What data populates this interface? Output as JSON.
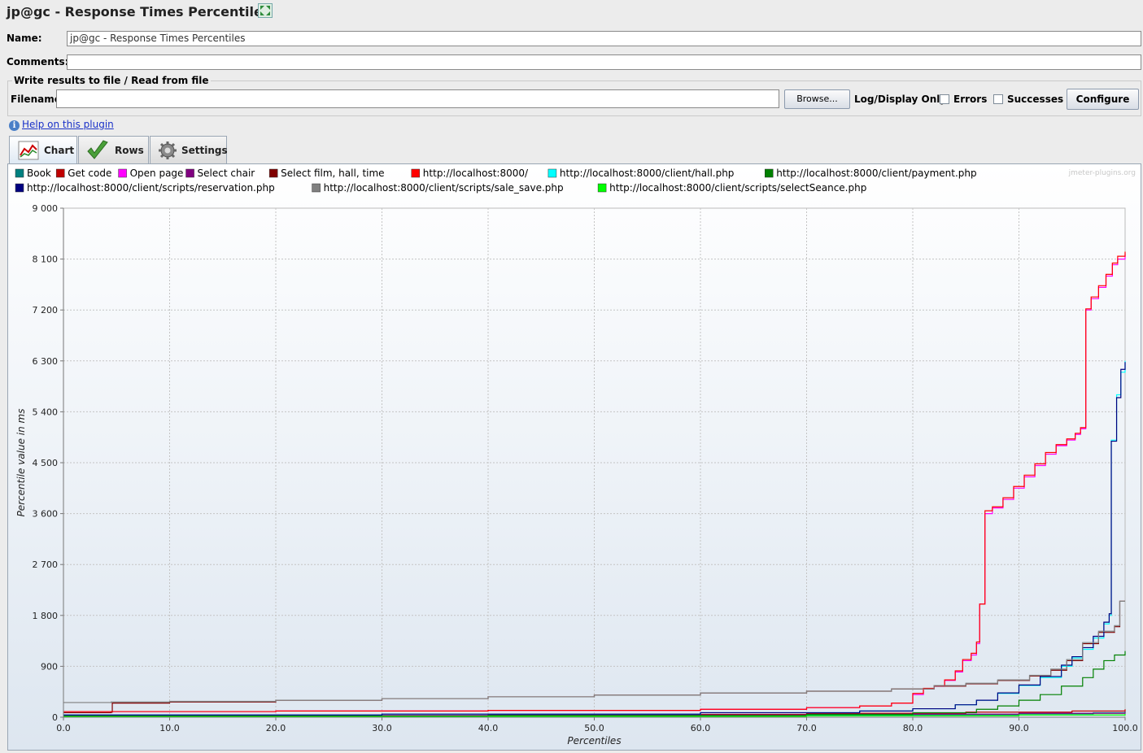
{
  "header": {
    "title": "jp@gc - Response Times Percentiles",
    "expand_icon": "expand-icon"
  },
  "form": {
    "name_label": "Name:",
    "name_value": "jp@gc - Response Times Percentiles",
    "comments_label": "Comments:",
    "comments_value": "",
    "file_group_title": "Write results to file / Read from file",
    "filename_label": "Filename",
    "filename_value": "",
    "browse_label": "Browse...",
    "log_display_label": "Log/Display Only:",
    "errors_label": "Errors",
    "errors_checked": false,
    "successes_label": "Successes",
    "successes_checked": false,
    "configure_label": "Configure"
  },
  "help": {
    "icon": "info-icon",
    "link": "Help on this plugin"
  },
  "tabs": [
    {
      "label": "Chart",
      "icon": "chart-icon",
      "active": true
    },
    {
      "label": "Rows",
      "icon": "checkmark-icon",
      "active": false
    },
    {
      "label": "Settings",
      "icon": "gear-icon",
      "active": false
    }
  ],
  "watermark": "jmeter-plugins.org",
  "chart_data": {
    "type": "line",
    "title": "",
    "xlabel": "Percentiles",
    "ylabel": "Percentile value in ms",
    "xlim": [
      0,
      100
    ],
    "ylim": [
      0,
      9000
    ],
    "x_ticks": [
      "0.0",
      "10.0",
      "20.0",
      "30.0",
      "40.0",
      "50.0",
      "60.0",
      "70.0",
      "80.0",
      "90.0",
      "100.0"
    ],
    "y_ticks": [
      "0",
      "900",
      "1 800",
      "2 700",
      "3 600",
      "4 500",
      "5 400",
      "6 300",
      "7 200",
      "8 100",
      "9 000"
    ],
    "grid": true,
    "legend_position": "top",
    "series": [
      {
        "name": "Book",
        "color": "#008080",
        "points": [
          [
            0,
            20
          ],
          [
            50,
            35
          ],
          [
            80,
            45
          ],
          [
            90,
            60
          ],
          [
            97,
            80
          ],
          [
            100,
            100
          ]
        ]
      },
      {
        "name": "Get code",
        "color": "#c00000",
        "points": [
          [
            0,
            30
          ],
          [
            40,
            50
          ],
          [
            70,
            70
          ],
          [
            85,
            90
          ],
          [
            95,
            110
          ],
          [
            100,
            140
          ]
        ]
      },
      {
        "name": "Open page",
        "color": "#ff00ff",
        "points": [
          [
            0,
            100
          ],
          [
            20,
            110
          ],
          [
            40,
            120
          ],
          [
            60,
            140
          ],
          [
            70,
            170
          ],
          [
            75,
            200
          ],
          [
            78,
            250
          ],
          [
            80,
            400
          ],
          [
            81,
            500
          ],
          [
            82,
            550
          ],
          [
            83,
            650
          ],
          [
            84,
            800
          ],
          [
            84.7,
            1000
          ],
          [
            85.5,
            1100
          ],
          [
            86,
            1300
          ],
          [
            86.3,
            2000
          ],
          [
            86.8,
            3600
          ],
          [
            87.5,
            3700
          ],
          [
            88.5,
            3850
          ],
          [
            89.5,
            4050
          ],
          [
            90.5,
            4250
          ],
          [
            91.5,
            4450
          ],
          [
            92.5,
            4650
          ],
          [
            93.5,
            4800
          ],
          [
            94.5,
            4900
          ],
          [
            95.3,
            5000
          ],
          [
            95.8,
            5100
          ],
          [
            96.3,
            7200
          ],
          [
            96.8,
            7400
          ],
          [
            97.5,
            7600
          ],
          [
            98.2,
            7800
          ],
          [
            98.8,
            8000
          ],
          [
            99.3,
            8100
          ],
          [
            100,
            8200
          ]
        ]
      },
      {
        "name": "Select chair",
        "color": "#800080",
        "points": [
          [
            0,
            30
          ],
          [
            40,
            40
          ],
          [
            70,
            55
          ],
          [
            90,
            70
          ],
          [
            100,
            90
          ]
        ]
      },
      {
        "name": "Select film, hall, time",
        "color": "#800000",
        "points": [
          [
            0,
            80
          ],
          [
            4.5,
            90
          ],
          [
            4.6,
            250
          ],
          [
            10,
            270
          ],
          [
            20,
            300
          ],
          [
            30,
            330
          ],
          [
            40,
            360
          ],
          [
            50,
            390
          ],
          [
            60,
            430
          ],
          [
            70,
            460
          ],
          [
            78,
            500
          ],
          [
            82,
            550
          ],
          [
            85,
            590
          ],
          [
            88,
            650
          ],
          [
            91,
            730
          ],
          [
            93,
            830
          ],
          [
            94.5,
            1000
          ],
          [
            96,
            1300
          ],
          [
            97.5,
            1500
          ],
          [
            99,
            1600
          ],
          [
            99.5,
            2050
          ],
          [
            100,
            2050
          ]
        ]
      },
      {
        "name": "http://localhost:8000/",
        "color": "#ff0000",
        "points": [
          [
            0,
            100
          ],
          [
            20,
            110
          ],
          [
            40,
            120
          ],
          [
            60,
            140
          ],
          [
            70,
            170
          ],
          [
            75,
            200
          ],
          [
            78,
            250
          ],
          [
            80,
            420
          ],
          [
            81,
            510
          ],
          [
            82,
            560
          ],
          [
            83,
            660
          ],
          [
            84,
            820
          ],
          [
            84.7,
            1020
          ],
          [
            85.5,
            1130
          ],
          [
            86,
            1330
          ],
          [
            86.3,
            2000
          ],
          [
            86.8,
            3650
          ],
          [
            87.5,
            3720
          ],
          [
            88.5,
            3880
          ],
          [
            89.5,
            4080
          ],
          [
            90.5,
            4280
          ],
          [
            91.5,
            4480
          ],
          [
            92.5,
            4680
          ],
          [
            93.5,
            4820
          ],
          [
            94.5,
            4920
          ],
          [
            95.3,
            5020
          ],
          [
            95.8,
            5120
          ],
          [
            96.3,
            7220
          ],
          [
            96.8,
            7430
          ],
          [
            97.5,
            7630
          ],
          [
            98.2,
            7830
          ],
          [
            98.8,
            8030
          ],
          [
            99.3,
            8150
          ],
          [
            100,
            8230
          ]
        ]
      },
      {
        "name": "http://localhost:8000/client/hall.php",
        "color": "#00ffff",
        "points": [
          [
            0,
            40
          ],
          [
            30,
            55
          ],
          [
            60,
            80
          ],
          [
            75,
            110
          ],
          [
            80,
            150
          ],
          [
            84,
            220
          ],
          [
            86,
            300
          ],
          [
            88,
            420
          ],
          [
            90,
            560
          ],
          [
            92,
            700
          ],
          [
            94,
            900
          ],
          [
            95,
            1050
          ],
          [
            96,
            1200
          ],
          [
            97,
            1400
          ],
          [
            98,
            1650
          ],
          [
            98.5,
            1800
          ],
          [
            98.7,
            4900
          ],
          [
            99,
            4900
          ],
          [
            99.2,
            5700
          ],
          [
            99.6,
            6100
          ],
          [
            100,
            6300
          ]
        ]
      },
      {
        "name": "http://localhost:8000/client/payment.php",
        "color": "#008000",
        "points": [
          [
            0,
            20
          ],
          [
            40,
            30
          ],
          [
            70,
            50
          ],
          [
            80,
            80
          ],
          [
            86,
            140
          ],
          [
            88,
            200
          ],
          [
            90,
            300
          ],
          [
            92,
            400
          ],
          [
            94,
            550
          ],
          [
            96,
            700
          ],
          [
            97,
            850
          ],
          [
            98,
            1000
          ],
          [
            99,
            1100
          ],
          [
            100,
            1170
          ]
        ]
      },
      {
        "name": "http://localhost:8000/client/scripts/reservation.php",
        "color": "#000080",
        "points": [
          [
            0,
            40
          ],
          [
            30,
            55
          ],
          [
            60,
            80
          ],
          [
            75,
            110
          ],
          [
            80,
            150
          ],
          [
            84,
            220
          ],
          [
            86,
            300
          ],
          [
            88,
            430
          ],
          [
            90,
            570
          ],
          [
            92,
            720
          ],
          [
            94,
            920
          ],
          [
            95,
            1070
          ],
          [
            96,
            1230
          ],
          [
            97,
            1430
          ],
          [
            98,
            1680
          ],
          [
            98.5,
            1830
          ],
          [
            98.7,
            4880
          ],
          [
            99,
            4880
          ],
          [
            99.2,
            5650
          ],
          [
            99.6,
            6150
          ],
          [
            100,
            6280
          ]
        ]
      },
      {
        "name": "http://localhost:8000/client/scripts/sale_save.php",
        "color": "#808080",
        "points": [
          [
            0,
            260
          ],
          [
            4.5,
            270
          ],
          [
            10,
            280
          ],
          [
            20,
            300
          ],
          [
            30,
            330
          ],
          [
            40,
            360
          ],
          [
            50,
            390
          ],
          [
            60,
            430
          ],
          [
            70,
            460
          ],
          [
            78,
            500
          ],
          [
            82,
            560
          ],
          [
            85,
            600
          ],
          [
            88,
            660
          ],
          [
            91,
            740
          ],
          [
            93,
            850
          ],
          [
            94.5,
            1020
          ],
          [
            96,
            1320
          ],
          [
            97.5,
            1520
          ],
          [
            99,
            1620
          ],
          [
            99.5,
            2050
          ],
          [
            100,
            2050
          ]
        ]
      },
      {
        "name": "http://localhost:8000/client/scripts/selectSeance.php",
        "color": "#00ff00",
        "points": [
          [
            0,
            10
          ],
          [
            40,
            15
          ],
          [
            70,
            25
          ],
          [
            90,
            40
          ],
          [
            100,
            60
          ]
        ]
      }
    ]
  }
}
